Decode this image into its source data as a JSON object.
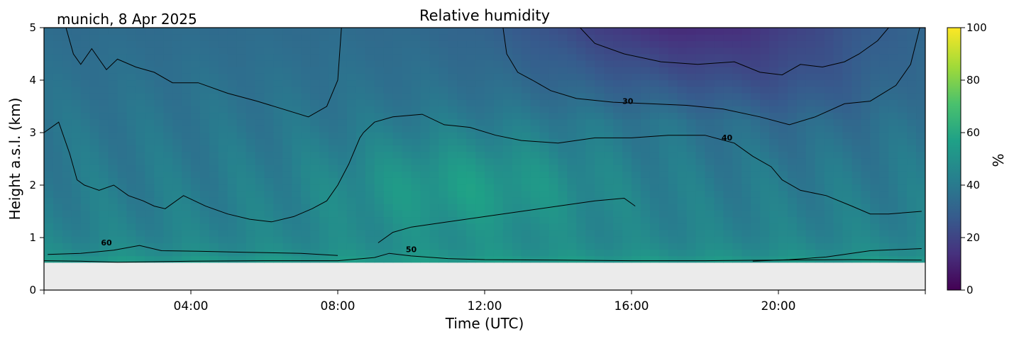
{
  "header": {
    "location_date": "munich, 8 Apr 2025",
    "title": "Relative humidity"
  },
  "colorbar": {
    "label": "%",
    "ticks": [
      "0",
      "20",
      "40",
      "60",
      "80",
      "100"
    ],
    "colormap": "viridis",
    "stops": [
      "#440154",
      "#46327e",
      "#365c8d",
      "#277f8e",
      "#1fa187",
      "#4ac16d",
      "#a0da39",
      "#fde725"
    ]
  },
  "chart_data": {
    "type": "heatmap",
    "title": "Relative humidity",
    "xlabel": "Time (UTC)",
    "ylabel": "Height a.s.l. (km)",
    "xlim": [
      0,
      24
    ],
    "ylim": [
      0,
      5
    ],
    "zlim": [
      0,
      100
    ],
    "x_ticks": [
      {
        "value": 4,
        "label": "04:00"
      },
      {
        "value": 8,
        "label": "08:00"
      },
      {
        "value": 12,
        "label": "12:00"
      },
      {
        "value": 16,
        "label": "16:00"
      },
      {
        "value": 20,
        "label": "20:00"
      }
    ],
    "y_ticks": [
      {
        "value": 0,
        "label": "0"
      },
      {
        "value": 1,
        "label": "1"
      },
      {
        "value": 2,
        "label": "2"
      },
      {
        "value": 3,
        "label": "3"
      },
      {
        "value": 4,
        "label": "4"
      },
      {
        "value": 5,
        "label": "5"
      }
    ],
    "data_bottom_km": 0.53,
    "no_data_color": "#ebebeb",
    "contour_levels": [
      30,
      40,
      50,
      60
    ],
    "contour_labels": [
      {
        "text": "60",
        "x": 1.7,
        "y": 0.85
      },
      {
        "text": "50",
        "x": 10.0,
        "y": 0.72
      },
      {
        "text": "30",
        "x": 15.9,
        "y": 3.55
      },
      {
        "text": "40",
        "x": 18.6,
        "y": 2.85
      }
    ],
    "contours": [
      {
        "level": 30,
        "points": [
          [
            12.5,
            5
          ],
          [
            12.6,
            4.5
          ],
          [
            12.9,
            4.15
          ],
          [
            13.3,
            4.0
          ],
          [
            13.8,
            3.8
          ],
          [
            14.5,
            3.65
          ],
          [
            15.5,
            3.58
          ],
          [
            16.5,
            3.55
          ],
          [
            17.5,
            3.52
          ],
          [
            18.5,
            3.45
          ],
          [
            19.5,
            3.3
          ],
          [
            20.3,
            3.15
          ],
          [
            21.0,
            3.3
          ],
          [
            21.8,
            3.55
          ],
          [
            22.5,
            3.6
          ],
          [
            23.2,
            3.9
          ],
          [
            23.6,
            4.3
          ],
          [
            23.85,
            5
          ]
        ]
      },
      {
        "level": 30,
        "points": [
          [
            14.6,
            5
          ],
          [
            15.0,
            4.7
          ],
          [
            15.8,
            4.5
          ],
          [
            16.8,
            4.35
          ],
          [
            17.8,
            4.3
          ],
          [
            18.8,
            4.35
          ],
          [
            19.5,
            4.15
          ],
          [
            20.1,
            4.1
          ],
          [
            20.6,
            4.3
          ],
          [
            21.2,
            4.25
          ],
          [
            21.8,
            4.35
          ],
          [
            22.2,
            4.5
          ],
          [
            22.7,
            4.75
          ],
          [
            23.0,
            5
          ]
        ]
      },
      {
        "level": 30,
        "points": [
          [
            0.6,
            5
          ],
          [
            0.8,
            4.5
          ],
          [
            1.0,
            4.3
          ],
          [
            1.3,
            4.6
          ],
          [
            1.5,
            4.4
          ],
          [
            1.7,
            4.2
          ],
          [
            2.0,
            4.4
          ],
          [
            2.5,
            4.25
          ],
          [
            3.0,
            4.15
          ],
          [
            3.5,
            3.95
          ],
          [
            4.2,
            3.95
          ],
          [
            5.0,
            3.75
          ],
          [
            5.8,
            3.6
          ],
          [
            6.5,
            3.45
          ],
          [
            7.2,
            3.3
          ],
          [
            7.7,
            3.5
          ],
          [
            8.0,
            4.0
          ],
          [
            8.1,
            5
          ]
        ]
      },
      {
        "level": 40,
        "points": [
          [
            8.7,
            3.0
          ],
          [
            9.0,
            3.2
          ],
          [
            9.5,
            3.3
          ],
          [
            10.3,
            3.35
          ],
          [
            10.9,
            3.15
          ],
          [
            11.6,
            3.1
          ],
          [
            12.3,
            2.95
          ],
          [
            13.0,
            2.85
          ],
          [
            14.0,
            2.8
          ],
          [
            15.0,
            2.9
          ],
          [
            16.0,
            2.9
          ],
          [
            17.0,
            2.95
          ],
          [
            18.0,
            2.95
          ],
          [
            18.8,
            2.8
          ],
          [
            19.3,
            2.55
          ],
          [
            19.8,
            2.35
          ],
          [
            20.1,
            2.1
          ],
          [
            20.6,
            1.9
          ],
          [
            21.3,
            1.8
          ],
          [
            22.0,
            1.6
          ],
          [
            22.5,
            1.45
          ],
          [
            23.0,
            1.45
          ],
          [
            23.9,
            1.5
          ]
        ]
      },
      {
        "level": 40,
        "points": [
          [
            0,
            3.0
          ],
          [
            0.4,
            3.2
          ],
          [
            0.7,
            2.6
          ],
          [
            0.9,
            2.1
          ],
          [
            1.1,
            2.0
          ],
          [
            1.5,
            1.9
          ],
          [
            1.9,
            2.0
          ],
          [
            2.3,
            1.8
          ],
          [
            2.7,
            1.7
          ],
          [
            3.0,
            1.6
          ],
          [
            3.3,
            1.55
          ],
          [
            3.8,
            1.8
          ],
          [
            4.4,
            1.6
          ],
          [
            5.0,
            1.45
          ],
          [
            5.6,
            1.35
          ],
          [
            6.2,
            1.3
          ],
          [
            6.8,
            1.4
          ],
          [
            7.3,
            1.55
          ],
          [
            7.7,
            1.7
          ],
          [
            8.0,
            2.0
          ],
          [
            8.3,
            2.4
          ],
          [
            8.6,
            2.9
          ],
          [
            8.7,
            3.0
          ]
        ]
      },
      {
        "level": 50,
        "points": [
          [
            9.1,
            0.9
          ],
          [
            9.5,
            1.1
          ],
          [
            10.0,
            1.2
          ],
          [
            11.0,
            1.3
          ],
          [
            12.0,
            1.4
          ],
          [
            13.0,
            1.5
          ],
          [
            14.0,
            1.6
          ],
          [
            15.0,
            1.7
          ],
          [
            15.8,
            1.75
          ],
          [
            16.1,
            1.6
          ]
        ]
      },
      {
        "level": 50,
        "points": [
          [
            0,
            0.56
          ],
          [
            1.0,
            0.55
          ],
          [
            2.0,
            0.53
          ],
          [
            4.0,
            0.55
          ],
          [
            6.0,
            0.56
          ],
          [
            8.0,
            0.56
          ],
          [
            9.0,
            0.62
          ],
          [
            9.4,
            0.7
          ],
          [
            10.0,
            0.65
          ],
          [
            11.0,
            0.6
          ],
          [
            12.0,
            0.58
          ],
          [
            14.0,
            0.57
          ],
          [
            16.0,
            0.56
          ],
          [
            18.0,
            0.56
          ],
          [
            20.0,
            0.57
          ],
          [
            22.0,
            0.58
          ],
          [
            23.9,
            0.57
          ]
        ]
      },
      {
        "level": 60,
        "points": [
          [
            0.1,
            0.68
          ],
          [
            1.0,
            0.7
          ],
          [
            1.9,
            0.76
          ],
          [
            2.6,
            0.85
          ],
          [
            3.2,
            0.75
          ],
          [
            4.2,
            0.74
          ],
          [
            5.5,
            0.72
          ],
          [
            7.0,
            0.7
          ],
          [
            8.0,
            0.66
          ]
        ]
      },
      {
        "level": 60,
        "points": [
          [
            19.3,
            0.55
          ],
          [
            20.3,
            0.58
          ],
          [
            21.3,
            0.63
          ],
          [
            22.5,
            0.75
          ],
          [
            23.9,
            0.79
          ]
        ]
      }
    ]
  }
}
